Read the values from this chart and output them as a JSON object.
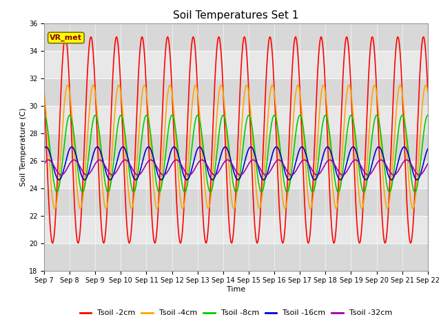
{
  "title": "Soil Temperatures Set 1",
  "xlabel": "Time",
  "ylabel": "Soil Temperature (C)",
  "ylim": [
    18,
    36
  ],
  "x_tick_labels": [
    "Sep 7",
    "Sep 8",
    "Sep 9",
    "Sep 10",
    "Sep 11",
    "Sep 12",
    "Sep 13",
    "Sep 14",
    "Sep 15",
    "Sep 16",
    "Sep 17",
    "Sep 18",
    "Sep 19",
    "Sep 20",
    "Sep 21",
    "Sep 22"
  ],
  "series": [
    {
      "label": "Tsoil -2cm",
      "color": "#FF0000",
      "mean": 27.5,
      "amplitude": 7.5,
      "phase_shift": 0.58,
      "period": 1.0
    },
    {
      "label": "Tsoil -4cm",
      "color": "#FFA500",
      "mean": 27.0,
      "amplitude": 4.5,
      "phase_shift": 0.67,
      "period": 1.0
    },
    {
      "label": "Tsoil -8cm",
      "color": "#00CC00",
      "mean": 26.5,
      "amplitude": 2.8,
      "phase_shift": 0.75,
      "period": 1.0
    },
    {
      "label": "Tsoil -16cm",
      "color": "#0000CC",
      "mean": 25.8,
      "amplitude": 1.2,
      "phase_shift": 0.83,
      "period": 1.0
    },
    {
      "label": "Tsoil -32cm",
      "color": "#9900AA",
      "mean": 25.5,
      "amplitude": 0.55,
      "phase_shift": 0.92,
      "period": 1.0
    }
  ],
  "vr_met_label": "VR_met",
  "background_color": "#FFFFFF",
  "plot_bg_color": "#D8D8D8",
  "band_light": "#E8E8E8",
  "title_fontsize": 11,
  "label_fontsize": 8,
  "tick_fontsize": 7,
  "legend_fontsize": 8,
  "linewidth": 1.2
}
